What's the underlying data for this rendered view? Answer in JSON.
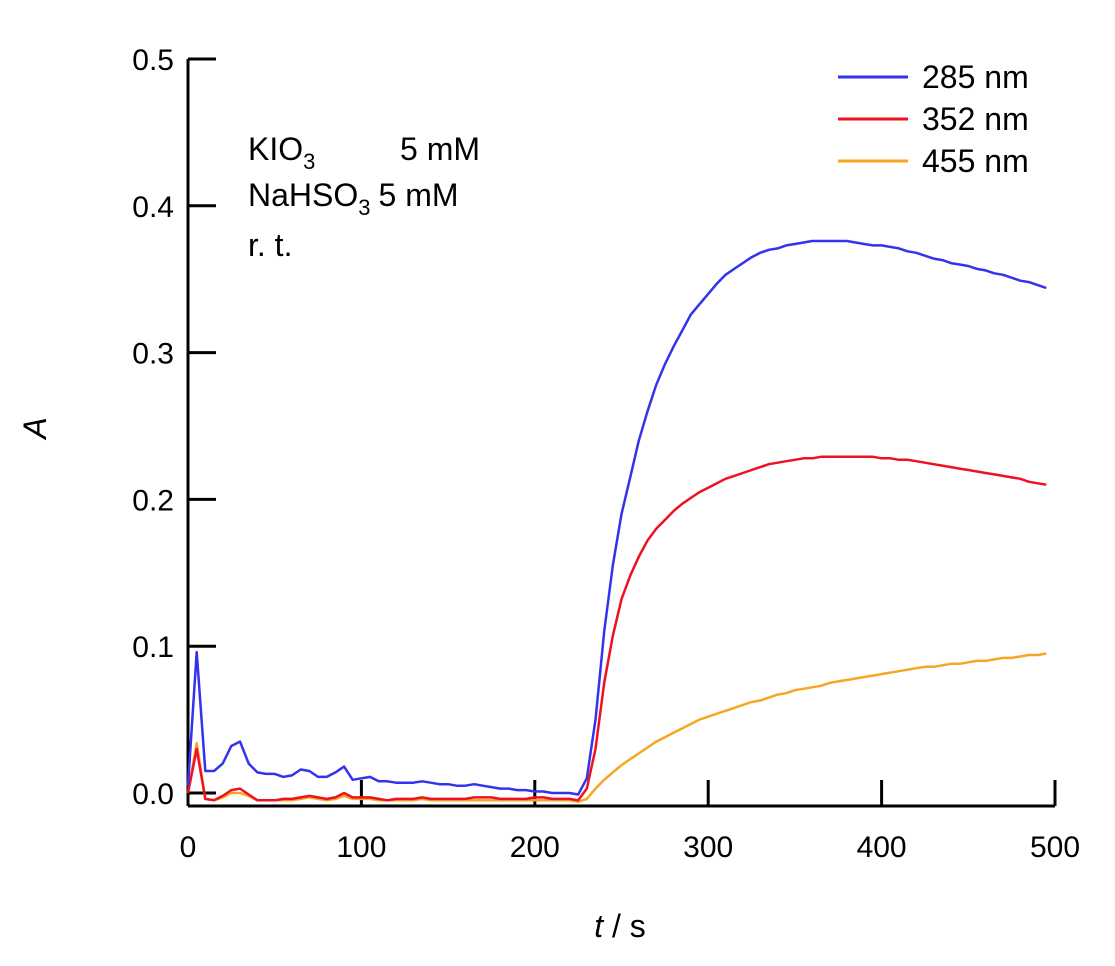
{
  "chart_data": {
    "type": "line",
    "xlabel_var": "t",
    "xlabel_unit": " / s",
    "ylabel": "A",
    "xlim": [
      0,
      500
    ],
    "ylim": [
      -0.01,
      0.5
    ],
    "xticks": [
      0,
      100,
      200,
      300,
      400,
      500
    ],
    "yticks": [
      0.0,
      0.1,
      0.2,
      0.3,
      0.4,
      0.5
    ],
    "ytick_labels": [
      "0.0",
      "0.1",
      "0.2",
      "0.3",
      "0.4",
      "0.5"
    ],
    "grid": false,
    "legend_position": "top-right",
    "annotations": {
      "line1": {
        "base": "KIO",
        "sub": "3",
        "value": "5 mM"
      },
      "line2": {
        "base": "NaHSO",
        "sub": "3",
        "value": "5 mM"
      },
      "line3": {
        "text": "r. t."
      }
    },
    "x": [
      0,
      5,
      10,
      15,
      20,
      25,
      30,
      35,
      40,
      45,
      50,
      55,
      60,
      65,
      70,
      75,
      80,
      85,
      90,
      95,
      100,
      105,
      110,
      115,
      120,
      125,
      130,
      135,
      140,
      145,
      150,
      155,
      160,
      165,
      170,
      175,
      180,
      185,
      190,
      195,
      200,
      205,
      210,
      215,
      220,
      225,
      230,
      235,
      240,
      245,
      250,
      255,
      260,
      265,
      270,
      275,
      280,
      285,
      290,
      295,
      300,
      305,
      310,
      315,
      320,
      325,
      330,
      335,
      340,
      345,
      350,
      355,
      360,
      365,
      370,
      375,
      380,
      385,
      390,
      395,
      400,
      405,
      410,
      415,
      420,
      425,
      430,
      435,
      440,
      445,
      450,
      455,
      460,
      465,
      470,
      475,
      480,
      485,
      490,
      495
    ],
    "series": [
      {
        "name": "285 nm",
        "color": "#3333ee",
        "values": [
          0.005,
          0.096,
          0.015,
          0.015,
          0.02,
          0.032,
          0.035,
          0.02,
          0.014,
          0.013,
          0.013,
          0.011,
          0.012,
          0.016,
          0.015,
          0.011,
          0.011,
          0.014,
          0.018,
          0.009,
          0.01,
          0.011,
          0.008,
          0.008,
          0.007,
          0.007,
          0.007,
          0.008,
          0.007,
          0.006,
          0.006,
          0.005,
          0.005,
          0.006,
          0.005,
          0.004,
          0.003,
          0.003,
          0.002,
          0.002,
          0.001,
          0.001,
          0.0,
          0.0,
          0.0,
          -0.001,
          0.01,
          0.05,
          0.11,
          0.155,
          0.19,
          0.215,
          0.24,
          0.26,
          0.278,
          0.292,
          0.304,
          0.315,
          0.326,
          0.333,
          0.34,
          0.347,
          0.353,
          0.357,
          0.361,
          0.365,
          0.368,
          0.37,
          0.371,
          0.373,
          0.374,
          0.375,
          0.376,
          0.376,
          0.376,
          0.376,
          0.376,
          0.375,
          0.374,
          0.373,
          0.373,
          0.372,
          0.371,
          0.369,
          0.368,
          0.366,
          0.364,
          0.363,
          0.361,
          0.36,
          0.359,
          0.357,
          0.356,
          0.354,
          0.353,
          0.351,
          0.349,
          0.348,
          0.346,
          0.344
        ]
      },
      {
        "name": "352 nm",
        "color": "#ee1122",
        "values": [
          0.0,
          0.03,
          -0.004,
          -0.005,
          -0.002,
          0.002,
          0.003,
          -0.001,
          -0.005,
          -0.005,
          -0.005,
          -0.004,
          -0.004,
          -0.003,
          -0.002,
          -0.003,
          -0.004,
          -0.003,
          0.0,
          -0.003,
          -0.003,
          -0.003,
          -0.004,
          -0.005,
          -0.004,
          -0.004,
          -0.004,
          -0.003,
          -0.004,
          -0.004,
          -0.004,
          -0.004,
          -0.004,
          -0.003,
          -0.003,
          -0.003,
          -0.004,
          -0.004,
          -0.004,
          -0.004,
          -0.003,
          -0.003,
          -0.004,
          -0.004,
          -0.004,
          -0.005,
          0.003,
          0.03,
          0.075,
          0.107,
          0.132,
          0.148,
          0.161,
          0.172,
          0.18,
          0.186,
          0.192,
          0.197,
          0.201,
          0.205,
          0.208,
          0.211,
          0.214,
          0.216,
          0.218,
          0.22,
          0.222,
          0.224,
          0.225,
          0.226,
          0.227,
          0.228,
          0.228,
          0.229,
          0.229,
          0.229,
          0.229,
          0.229,
          0.229,
          0.229,
          0.228,
          0.228,
          0.227,
          0.227,
          0.226,
          0.225,
          0.224,
          0.223,
          0.222,
          0.221,
          0.22,
          0.219,
          0.218,
          0.217,
          0.216,
          0.215,
          0.214,
          0.212,
          0.211,
          0.21
        ]
      },
      {
        "name": "455 nm",
        "color": "#f5a623",
        "values": [
          0.0,
          0.034,
          -0.004,
          -0.005,
          -0.003,
          0.0,
          0.0,
          -0.002,
          -0.005,
          -0.005,
          -0.005,
          -0.005,
          -0.005,
          -0.004,
          -0.003,
          -0.004,
          -0.005,
          -0.004,
          -0.002,
          -0.004,
          -0.004,
          -0.004,
          -0.005,
          -0.005,
          -0.005,
          -0.005,
          -0.005,
          -0.004,
          -0.005,
          -0.005,
          -0.005,
          -0.005,
          -0.005,
          -0.005,
          -0.005,
          -0.005,
          -0.005,
          -0.005,
          -0.005,
          -0.005,
          -0.005,
          -0.005,
          -0.005,
          -0.005,
          -0.005,
          -0.006,
          -0.004,
          0.003,
          0.009,
          0.014,
          0.019,
          0.023,
          0.027,
          0.031,
          0.035,
          0.038,
          0.041,
          0.044,
          0.047,
          0.05,
          0.052,
          0.054,
          0.056,
          0.058,
          0.06,
          0.062,
          0.063,
          0.065,
          0.067,
          0.068,
          0.07,
          0.071,
          0.072,
          0.073,
          0.075,
          0.076,
          0.077,
          0.078,
          0.079,
          0.08,
          0.081,
          0.082,
          0.083,
          0.084,
          0.085,
          0.086,
          0.086,
          0.087,
          0.088,
          0.088,
          0.089,
          0.09,
          0.09,
          0.091,
          0.092,
          0.092,
          0.093,
          0.094,
          0.094,
          0.095
        ]
      }
    ]
  }
}
